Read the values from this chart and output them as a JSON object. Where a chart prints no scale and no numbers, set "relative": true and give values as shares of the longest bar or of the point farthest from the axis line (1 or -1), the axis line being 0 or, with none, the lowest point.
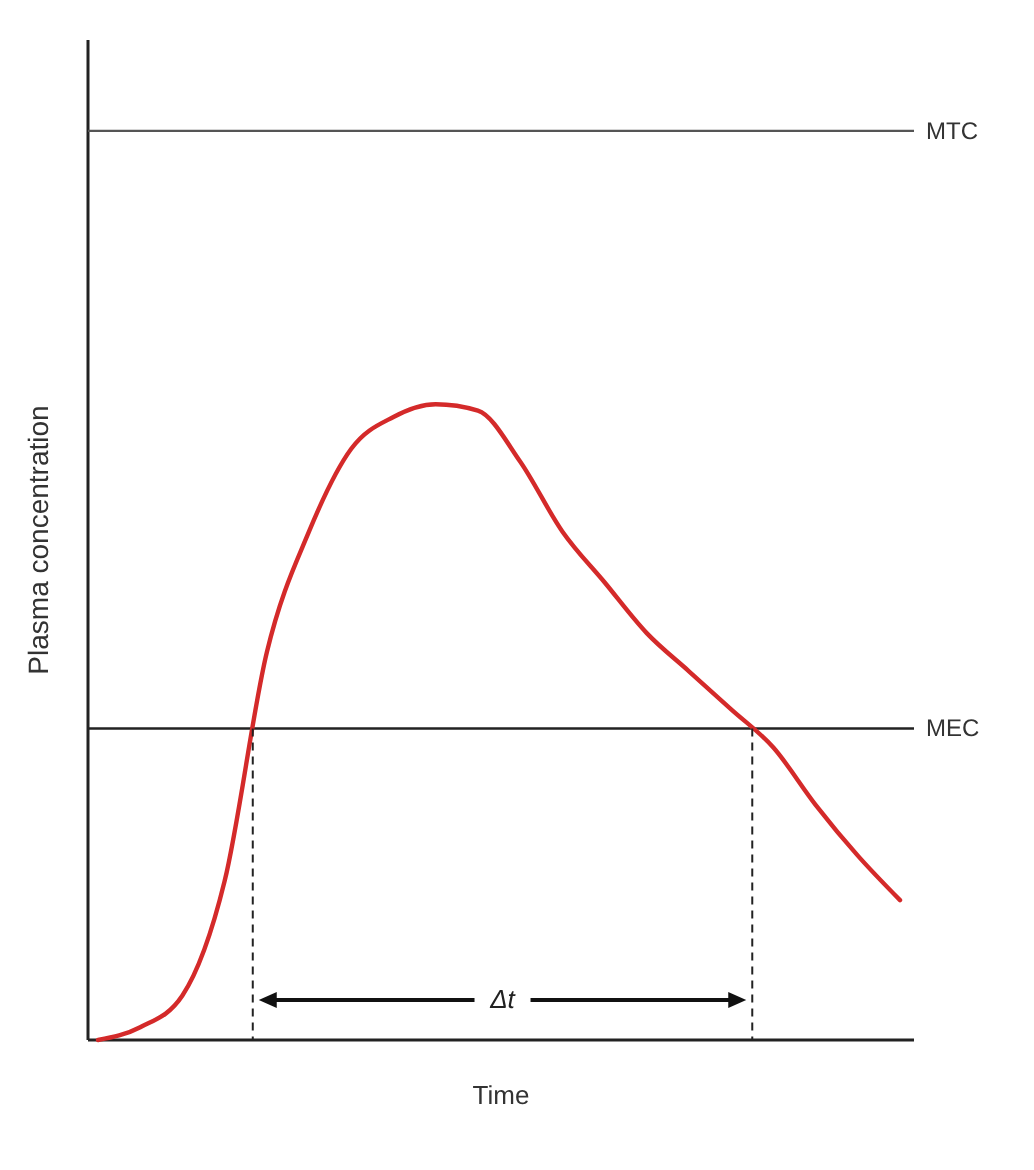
{
  "chart_data": {
    "type": "line",
    "relative": true,
    "xlabel": "Time",
    "ylabel": "Plasma concentration",
    "categories": [
      null,
      null,
      null,
      null,
      null,
      null,
      null,
      null,
      null,
      null,
      null,
      null,
      null,
      null,
      null,
      null,
      null,
      null,
      null,
      null
    ],
    "series": [
      {
        "color": "#d42a2a",
        "values": [
          0,
          0.02,
          0.07,
          0.25,
          0.61,
          0.8,
          0.93,
          0.98,
          1,
          0.99,
          0.91,
          0.8,
          0.72,
          0.64,
          0.58,
          0.52,
          0.46,
          0.37,
          0.29,
          0.22
        ]
      }
    ],
    "ref_lines": [
      {
        "axis": "y",
        "value": 1.43,
        "label": "MTC",
        "color": "#555555"
      },
      {
        "axis": "y",
        "value": 0.49,
        "label": "MEC",
        "color": "#222222"
      }
    ],
    "annotations": [
      "Δt"
    ]
  }
}
